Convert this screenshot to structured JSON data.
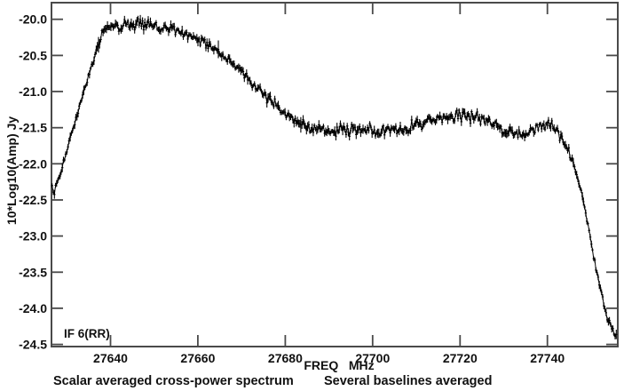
{
  "page": {
    "background": "#ffffff"
  },
  "chart_data": {
    "type": "line",
    "title": "",
    "xlabel": "FREQ   MHz",
    "ylabel": "10*Log10(Amp) Jy",
    "if_label": "IF 6(RR)",
    "caption_left": "Scalar averaged cross-power spectrum",
    "caption_right": "Several baselines averaged",
    "xlim": [
      27626.5,
      27756.1
    ],
    "ylim": [
      -24.53,
      -19.77
    ],
    "xticks": [
      27640,
      27660,
      27680,
      27700,
      27720,
      27740
    ],
    "yticks": [
      -20.0,
      -20.5,
      -21.0,
      -21.5,
      -22.0,
      -22.5,
      -23.0,
      -23.5,
      -24.0,
      -24.5
    ],
    "grid": false,
    "legend": "none",
    "axis_color": "#4a4a4a",
    "line_color": "#000000",
    "marker": "plus-with-errorbar",
    "n_channels": 500,
    "noise_sigma": 0.038,
    "errorbar_halflen": 0.045,
    "series": [
      {
        "name": "scalar averaged cross-power spectrum, several baselines averaged",
        "points": [
          [
            27626.5,
            -22.33
          ],
          [
            27627.0,
            -22.39
          ],
          [
            27627.5,
            -22.36
          ],
          [
            27628,
            -22.22
          ],
          [
            27629,
            -22.02
          ],
          [
            27630,
            -21.81
          ],
          [
            27631,
            -21.62
          ],
          [
            27632,
            -21.43
          ],
          [
            27633,
            -21.21
          ],
          [
            27634,
            -21.0
          ],
          [
            27635,
            -20.79
          ],
          [
            27636,
            -20.57
          ],
          [
            27637,
            -20.37
          ],
          [
            27638,
            -20.22
          ],
          [
            27639,
            -20.12
          ],
          [
            27640,
            -20.07
          ],
          [
            27641,
            -20.1
          ],
          [
            27642,
            -20.14
          ],
          [
            27643,
            -20.08
          ],
          [
            27644,
            -20.04
          ],
          [
            27645,
            -20.1
          ],
          [
            27646,
            -20.06
          ],
          [
            27647,
            -20.04
          ],
          [
            27648,
            -20.09
          ],
          [
            27649,
            -20.07
          ],
          [
            27650,
            -20.05
          ],
          [
            27651,
            -20.1
          ],
          [
            27652,
            -20.12
          ],
          [
            27653,
            -20.1
          ],
          [
            27654,
            -20.13
          ],
          [
            27655,
            -20.15
          ],
          [
            27656,
            -20.17
          ],
          [
            27657,
            -20.2
          ],
          [
            27658,
            -20.23
          ],
          [
            27659,
            -20.26
          ],
          [
            27660,
            -20.28
          ],
          [
            27661,
            -20.31
          ],
          [
            27662,
            -20.34
          ],
          [
            27663,
            -20.38
          ],
          [
            27664,
            -20.42
          ],
          [
            27665,
            -20.47
          ],
          [
            27666,
            -20.52
          ],
          [
            27667,
            -20.57
          ],
          [
            27668,
            -20.62
          ],
          [
            27669,
            -20.67
          ],
          [
            27670,
            -20.72
          ],
          [
            27671,
            -20.78
          ],
          [
            27672,
            -20.85
          ],
          [
            27673,
            -20.92
          ],
          [
            27674,
            -20.98
          ],
          [
            27675,
            -21.04
          ],
          [
            27676,
            -21.1
          ],
          [
            27677,
            -21.15
          ],
          [
            27678,
            -21.2
          ],
          [
            27679,
            -21.25
          ],
          [
            27680,
            -21.3
          ],
          [
            27681,
            -21.34
          ],
          [
            27682,
            -21.38
          ],
          [
            27683,
            -21.42
          ],
          [
            27684,
            -21.45
          ],
          [
            27685,
            -21.48
          ],
          [
            27686,
            -21.5
          ],
          [
            27687,
            -21.52
          ],
          [
            27688,
            -21.53
          ],
          [
            27689,
            -21.54
          ],
          [
            27690,
            -21.55
          ],
          [
            27692,
            -21.54
          ],
          [
            27694,
            -21.55
          ],
          [
            27696,
            -21.53
          ],
          [
            27698,
            -21.54
          ],
          [
            27700,
            -21.52
          ],
          [
            27702,
            -21.54
          ],
          [
            27704,
            -21.53
          ],
          [
            27706,
            -21.52
          ],
          [
            27708,
            -21.5
          ],
          [
            27710,
            -21.47
          ],
          [
            27712,
            -21.43
          ],
          [
            27714,
            -21.39
          ],
          [
            27716,
            -21.36
          ],
          [
            27718,
            -21.35
          ],
          [
            27720,
            -21.34
          ],
          [
            27722,
            -21.35
          ],
          [
            27724,
            -21.37
          ],
          [
            27726,
            -21.41
          ],
          [
            27728,
            -21.47
          ],
          [
            27730,
            -21.53
          ],
          [
            27731,
            -21.57
          ],
          [
            27732,
            -21.6
          ],
          [
            27733,
            -21.6
          ],
          [
            27734,
            -21.58
          ],
          [
            27735,
            -21.55
          ],
          [
            27736,
            -21.53
          ],
          [
            27737,
            -21.51
          ],
          [
            27738,
            -21.49
          ],
          [
            27739,
            -21.47
          ],
          [
            27740,
            -21.46
          ],
          [
            27741,
            -21.48
          ],
          [
            27742,
            -21.53
          ],
          [
            27743,
            -21.61
          ],
          [
            27744,
            -21.73
          ],
          [
            27745,
            -21.86
          ],
          [
            27746,
            -22.01
          ],
          [
            27747,
            -22.22
          ],
          [
            27748,
            -22.46
          ],
          [
            27749,
            -22.76
          ],
          [
            27750,
            -23.08
          ],
          [
            27751,
            -23.42
          ],
          [
            27752,
            -23.68
          ],
          [
            27753,
            -23.97
          ],
          [
            27754,
            -24.18
          ],
          [
            27754.8,
            -24.28
          ],
          [
            27755.2,
            -24.34
          ],
          [
            27755.7,
            -24.41
          ]
        ]
      }
    ]
  }
}
